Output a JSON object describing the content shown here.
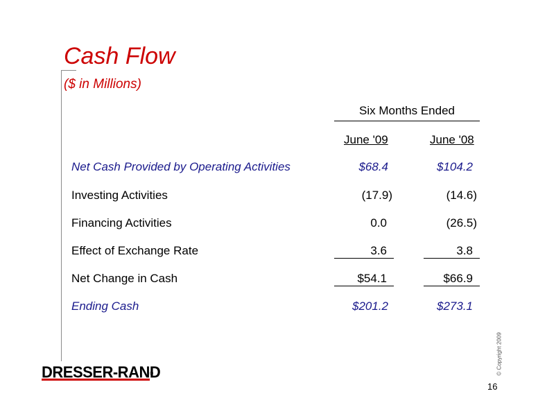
{
  "title": "Cash Flow",
  "subtitle": "($ in Millions)",
  "table": {
    "period_header": "Six Months Ended",
    "columns": [
      "June '09",
      "June '08"
    ],
    "rows": [
      {
        "label": "Net Cash Provided by Operating Activities",
        "values": [
          "$68.4",
          "$104.2"
        ]
      },
      {
        "label": "Investing Activities",
        "values": [
          "(17.9)",
          "(14.6)"
        ]
      },
      {
        "label": "Financing Activities",
        "values": [
          "0.0",
          "(26.5)"
        ]
      },
      {
        "label": "Effect of Exchange Rate",
        "values": [
          "3.6",
          "3.8"
        ]
      },
      {
        "label": "Net Change in Cash",
        "values": [
          "$54.1",
          "$66.9"
        ]
      },
      {
        "label": "Ending Cash",
        "values": [
          "$201.2",
          "$273.1"
        ]
      }
    ]
  },
  "logo_text": "DRESSER-RAND",
  "logo_registered": "®",
  "copyright": "© Copyright 2009",
  "page_number": "16",
  "colors": {
    "title": "#cc0000",
    "highlight_rows": "#1a1a8c",
    "logo_bar": "#cc0000"
  }
}
